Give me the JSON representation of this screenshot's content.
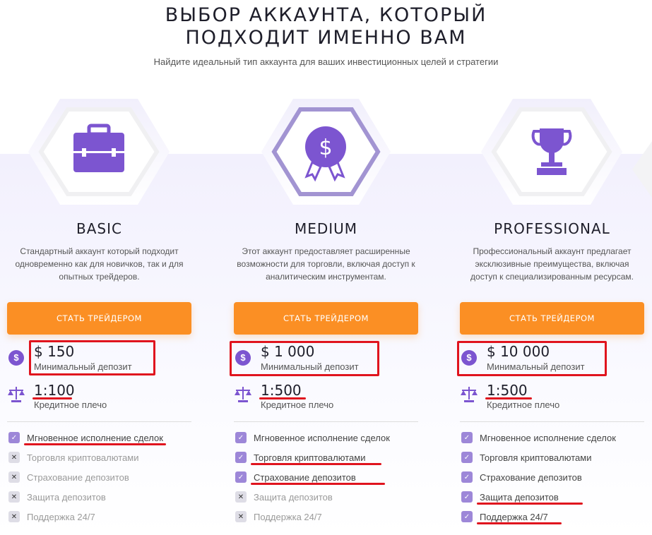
{
  "header": {
    "title_line1": "Выбор аккаунта, который",
    "title_line2": "подходит именно вам",
    "subtitle": "Найдите идеальный тип аккаунта для ваших инвестиционных целей и стратегии"
  },
  "colors": {
    "accent": "#7c55d0",
    "button": "#fb8f24",
    "annotation": "#e0141e"
  },
  "plans": [
    {
      "name": "BASIC",
      "icon": "briefcase-icon",
      "description": "Стандартный аккаунт который подходит одновременно как для новичков, так и для опытных трейдеров.",
      "button": "СТАТЬ ТРЕЙДЕРОМ",
      "deposit": "$ 150",
      "deposit_label": "Минимальный депозит",
      "leverage": "1:100",
      "leverage_label": "Кредитное плечо",
      "features": [
        {
          "label": "Мгновенное исполнение сделок",
          "included": true,
          "underlined": true
        },
        {
          "label": "Торговля криптовалютами",
          "included": false
        },
        {
          "label": "Страхование депозитов",
          "included": false
        },
        {
          "label": "Защита депозитов",
          "included": false
        },
        {
          "label": "Поддержка 24/7",
          "included": false
        }
      ]
    },
    {
      "name": "MEDIUM",
      "icon": "dollar-award-icon",
      "description": "Этот аккаунт предоставляет расширенные возможности для торговли, включая доступ к аналитическим инструментам.",
      "button": "СТАТЬ ТРЕЙДЕРОМ",
      "deposit": "$ 1 000",
      "deposit_label": "Минимальный депозит",
      "leverage": "1:500",
      "leverage_label": "Кредитное плечо",
      "features": [
        {
          "label": "Мгновенное исполнение сделок",
          "included": true
        },
        {
          "label": "Торговля криптовалютами",
          "included": true,
          "underlined": true
        },
        {
          "label": "Страхование депозитов",
          "included": true,
          "underlined": true
        },
        {
          "label": "Защита депозитов",
          "included": false
        },
        {
          "label": "Поддержка 24/7",
          "included": false
        }
      ]
    },
    {
      "name": "PROFESSIONAL",
      "icon": "trophy-icon",
      "description": "Профессиональный аккаунт предлагает эксклюзивные преимущества, включая доступ к специализированным ресурсам.",
      "button": "СТАТЬ ТРЕЙДЕРОМ",
      "deposit": "$ 10 000",
      "deposit_label": "Минимальный депозит",
      "leverage": "1:500",
      "leverage_label": "Кредитное плечо",
      "features": [
        {
          "label": "Мгновенное исполнение сделок",
          "included": true
        },
        {
          "label": "Торговля криптовалютами",
          "included": true
        },
        {
          "label": "Страхование депозитов",
          "included": true
        },
        {
          "label": "Защита депозитов",
          "included": true,
          "underlined": true
        },
        {
          "label": "Поддержка 24/7",
          "included": true,
          "underlined": true
        }
      ]
    }
  ]
}
